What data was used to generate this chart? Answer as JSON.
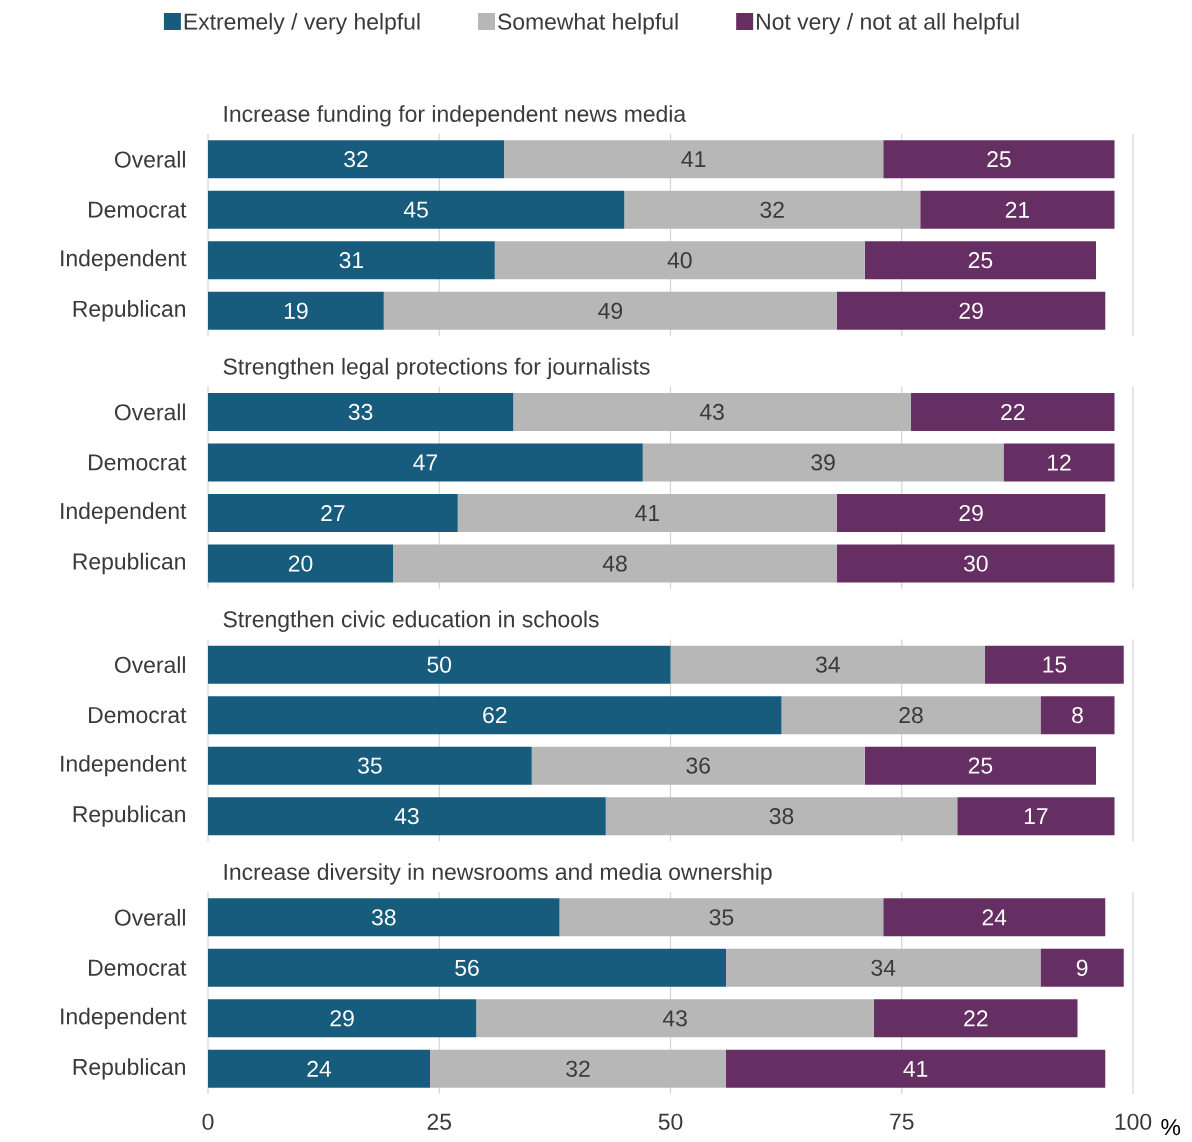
{
  "chart_data": [
    {
      "type": "bar",
      "title": "Increase funding for independent news media",
      "categories": [
        "Overall",
        "Democrat",
        "Independent",
        "Republican"
      ],
      "series": [
        {
          "name": "Extremely / very helpful",
          "color": "#175c7c",
          "values": [
            32,
            45,
            31,
            19
          ]
        },
        {
          "name": "Somewhat helpful",
          "color": "#b7b7b7",
          "values": [
            41,
            32,
            40,
            49
          ]
        },
        {
          "name": "Not very / not at all helpful",
          "color": "#662f63",
          "values": [
            25,
            21,
            25,
            29
          ]
        }
      ],
      "stacked": true,
      "orientation": "horizontal",
      "xlim": [
        0,
        100
      ],
      "xticks": [
        0,
        25,
        50,
        75,
        100
      ],
      "grid": "x",
      "data_labels": true,
      "tick_labels": "y",
      "legend": "top"
    },
    {
      "type": "bar",
      "title": "Strengthen legal protections for journalists",
      "categories": [
        "Overall",
        "Democrat",
        "Independent",
        "Republican"
      ],
      "series": [
        {
          "color": "#175c7c",
          "values": [
            33,
            47,
            27,
            20
          ]
        },
        {
          "color": "#b7b7b7",
          "values": [
            43,
            39,
            41,
            48
          ]
        },
        {
          "color": "#662f63",
          "values": [
            22,
            12,
            29,
            30
          ]
        }
      ],
      "stacked": true,
      "orientation": "horizontal",
      "xlim": [
        0,
        100
      ],
      "xticks": [
        0,
        25,
        50,
        75,
        100
      ],
      "grid": "x",
      "data_labels": true,
      "tick_labels": "y"
    },
    {
      "type": "bar",
      "title": "Strengthen civic education in schools",
      "categories": [
        "Overall",
        "Democrat",
        "Independent",
        "Republican"
      ],
      "series": [
        {
          "color": "#175c7c",
          "values": [
            50,
            62,
            35,
            43
          ]
        },
        {
          "color": "#b7b7b7",
          "values": [
            34,
            28,
            36,
            38
          ]
        },
        {
          "color": "#662f63",
          "values": [
            15,
            8,
            25,
            17
          ]
        }
      ],
      "stacked": true,
      "orientation": "horizontal",
      "xlim": [
        0,
        100
      ],
      "xticks": [
        0,
        25,
        50,
        75,
        100
      ],
      "grid": "x",
      "data_labels": true,
      "tick_labels": "y"
    },
    {
      "type": "bar",
      "title": "Increase diversity in newsrooms and media ownership",
      "categories": [
        "Overall",
        "Democrat",
        "Independent",
        "Republican"
      ],
      "series": [
        {
          "color": "#175c7c",
          "values": [
            38,
            56,
            29,
            24
          ]
        },
        {
          "color": "#b7b7b7",
          "values": [
            35,
            34,
            43,
            32
          ]
        },
        {
          "color": "#662f63",
          "values": [
            24,
            9,
            22,
            41
          ]
        }
      ],
      "stacked": true,
      "orientation": "horizontal",
      "xlim": [
        0,
        100
      ],
      "xticks": [
        0,
        25,
        50,
        75,
        100
      ],
      "grid": "x",
      "data_labels": true,
      "xlabel": "%"
    }
  ]
}
